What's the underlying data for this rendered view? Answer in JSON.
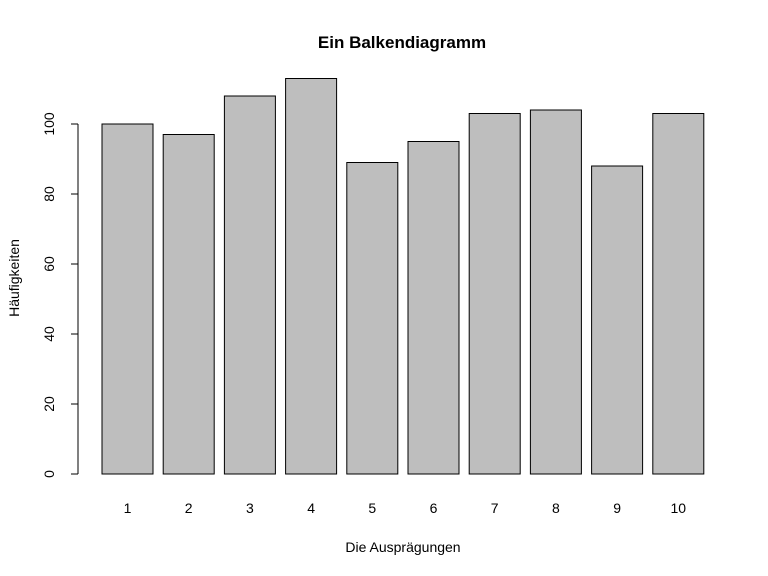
{
  "chart_data": {
    "type": "bar",
    "title": "Ein Balkendiagramm",
    "xlabel": "Die Ausprägungen",
    "ylabel": "Häufigkeiten",
    "categories": [
      "1",
      "2",
      "3",
      "4",
      "5",
      "6",
      "7",
      "8",
      "9",
      "10"
    ],
    "values": [
      100,
      97,
      108,
      113,
      89,
      95,
      103,
      104,
      88,
      103
    ],
    "ylim": [
      0,
      113
    ],
    "yticks": [
      0,
      20,
      40,
      60,
      80,
      100
    ],
    "grid": false,
    "bar_color": "#bebebe",
    "border_color": "#000000"
  }
}
